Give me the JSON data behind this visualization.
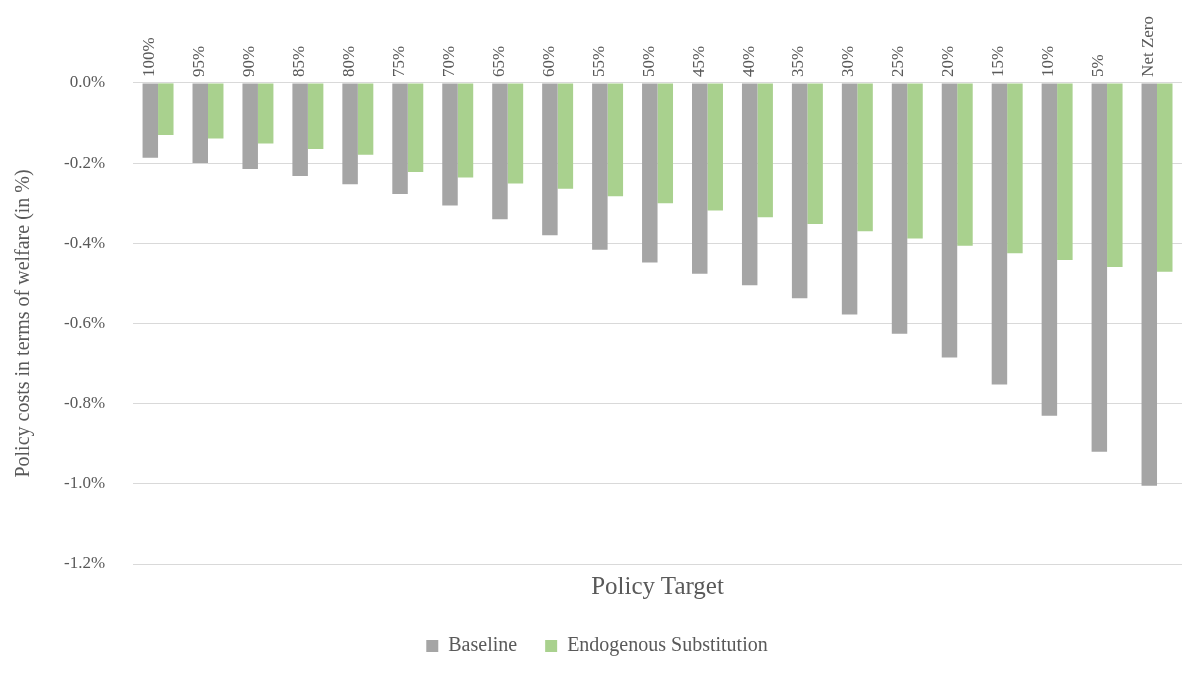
{
  "chart_data": {
    "type": "bar",
    "xlabel": "Policy Target",
    "ylabel": "Policy costs in terms of welfare (in %)",
    "categories": [
      "100%",
      "95%",
      "90%",
      "85%",
      "80%",
      "75%",
      "70%",
      "65%",
      "60%",
      "55%",
      "50%",
      "45%",
      "40%",
      "35%",
      "30%",
      "25%",
      "20%",
      "15%",
      "10%",
      "5%",
      "Net Zero"
    ],
    "series": [
      {
        "name": "Baseline",
        "color": "#a5a5a5",
        "values": [
          -0.187,
          -0.2,
          -0.215,
          -0.232,
          -0.253,
          -0.277,
          -0.306,
          -0.34,
          -0.38,
          -0.416,
          -0.448,
          -0.476,
          -0.505,
          -0.537,
          -0.578,
          -0.626,
          -0.685,
          -0.752,
          -0.83,
          -0.92,
          -1.005
        ]
      },
      {
        "name": "Endogenous Substitution",
        "color": "#a9d18e",
        "values": [
          -0.13,
          -0.139,
          -0.151,
          -0.165,
          -0.179,
          -0.222,
          -0.236,
          -0.251,
          -0.264,
          -0.283,
          -0.3,
          -0.318,
          -0.335,
          -0.352,
          -0.37,
          -0.388,
          -0.406,
          -0.425,
          -0.442,
          -0.459,
          -0.471
        ]
      }
    ],
    "ylim": [
      -1.2,
      0
    ],
    "yticks": [
      {
        "value": 0,
        "label": "0.0%"
      },
      {
        "value": -0.2,
        "label": "-0.2%"
      },
      {
        "value": -0.4,
        "label": "-0.4%"
      },
      {
        "value": -0.6,
        "label": "-0.6%"
      },
      {
        "value": -0.8,
        "label": "-0.8%"
      },
      {
        "value": -1.0,
        "label": "-1.0%"
      },
      {
        "value": -1.2,
        "label": "-1.2%"
      }
    ],
    "grid": "y",
    "legend": "bottom"
  }
}
